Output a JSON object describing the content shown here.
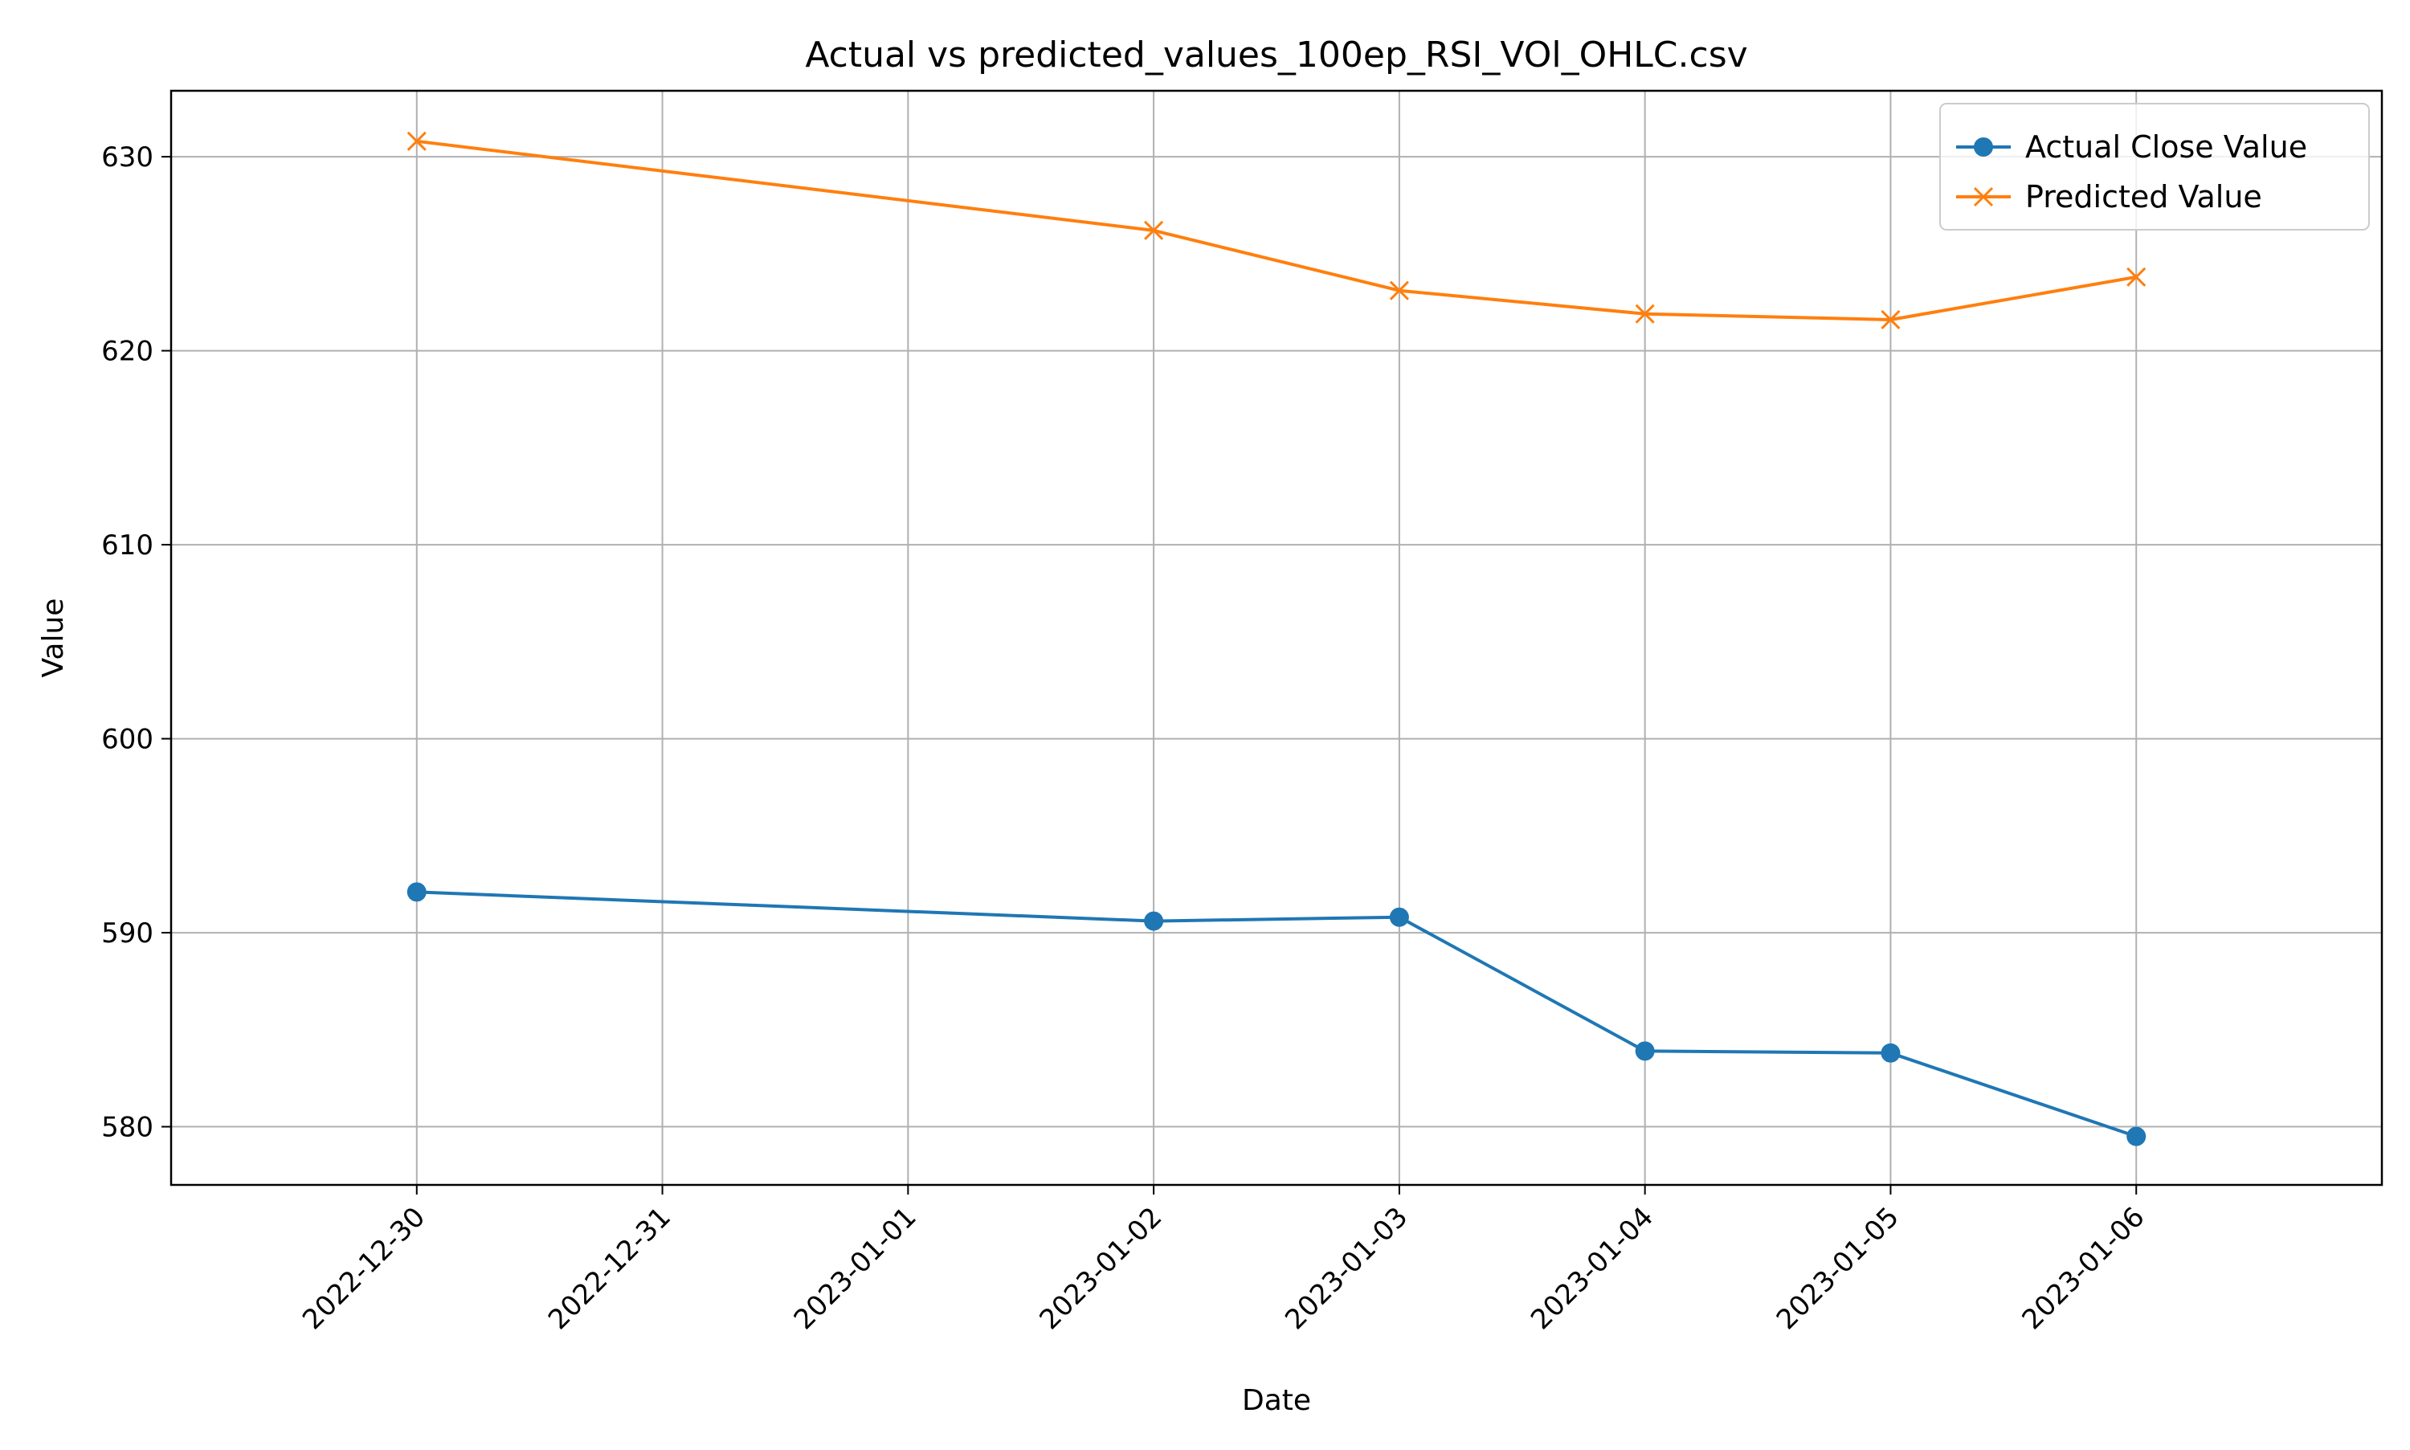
{
  "chart_data": {
    "type": "line",
    "title": "Actual vs predicted_values_100ep_RSI_VOl_OHLC.csv",
    "xlabel": "Date",
    "ylabel": "Value",
    "x_tick_labels": [
      "2022-12-30",
      "2022-12-31",
      "2023-01-01",
      "2023-01-02",
      "2023-01-03",
      "2023-01-04",
      "2023-01-05",
      "2023-01-06"
    ],
    "y_ticks": [
      580,
      590,
      600,
      610,
      620,
      630
    ],
    "ylim": [
      577.0,
      633.4
    ],
    "xlim": [
      "2022-12-29",
      "2023-01-07"
    ],
    "grid": true,
    "legend_position": "top-right",
    "series": [
      {
        "name": "Actual Close Value",
        "color": "#1f77b4",
        "marker": "circle",
        "points": [
          {
            "x": "2022-12-30",
            "y": 592.1
          },
          {
            "x": "2023-01-02",
            "y": 590.6
          },
          {
            "x": "2023-01-03",
            "y": 590.8
          },
          {
            "x": "2023-01-04",
            "y": 583.9
          },
          {
            "x": "2023-01-05",
            "y": 583.8
          },
          {
            "x": "2023-01-06",
            "y": 579.5
          }
        ]
      },
      {
        "name": "Predicted Value",
        "color": "#ff7f0e",
        "marker": "x",
        "points": [
          {
            "x": "2022-12-30",
            "y": 630.8
          },
          {
            "x": "2023-01-02",
            "y": 626.2
          },
          {
            "x": "2023-01-03",
            "y": 623.1
          },
          {
            "x": "2023-01-04",
            "y": 621.9
          },
          {
            "x": "2023-01-05",
            "y": 621.6
          },
          {
            "x": "2023-01-06",
            "y": 623.8
          }
        ]
      }
    ]
  }
}
